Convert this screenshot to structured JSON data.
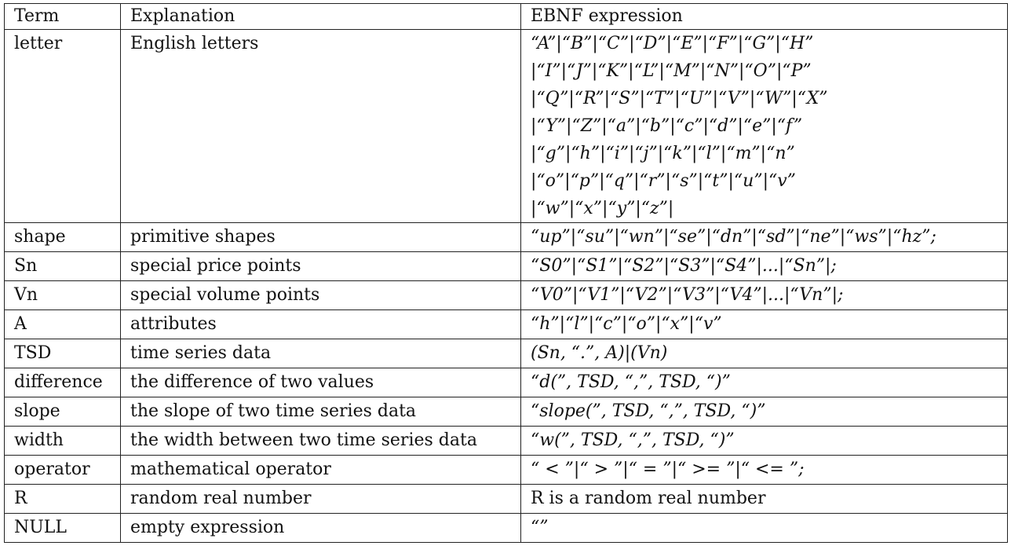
{
  "table": {
    "headers": [
      "Term",
      "Explanation",
      "EBNF expression"
    ],
    "rows": [
      {
        "term": "letter",
        "explanation": "English letters",
        "expression_lines": [
          "“A”|“B”|“C”|“D”|“E”|“F”|“G”|“H”",
          "|“I”|“J”|“K”|“L”|“M”|“N”|“O”|“P”",
          "|“Q”|“R”|“S”|“T”|“U”|“V”|“W”|“X”",
          "|“Y”|“Z”|“a”|“b”|“c”|“d”|“e”|“f”",
          "|“g”|“h”|“i”|“j”|“k”|“l”|“m”|“n”",
          "|“o”|“p”|“q”|“r”|“s”|“t”|“u”|“v”",
          "|“w”|“x”|“y”|“z”|"
        ]
      },
      {
        "term": "shape",
        "explanation": "primitive shapes",
        "expression": "“up”|“su”|“wn”|“se”|“dn”|“sd”|“ne”|“ws”|“hz”;"
      },
      {
        "term": "Sn",
        "explanation": "special price points",
        "expression": "“S0”|“S1”|“S2”|“S3”|“S4”|...|“Sn”|;"
      },
      {
        "term": "Vn",
        "explanation": "special volume points",
        "expression": "“V0”|“V1”|“V2”|“V3”|“V4”|...|“Vn”|;"
      },
      {
        "term": "A",
        "explanation": "attributes",
        "expression": "“h”|“l”|“c”|“o”|“x”|“v”"
      },
      {
        "term": "TSD",
        "explanation": "time series data",
        "expression": "(Sn, “.”, A)|(Vn)"
      },
      {
        "term": "difference",
        "explanation": "the difference of two values",
        "expression": "“d(”, TSD, “,”, TSD, “)”"
      },
      {
        "term": "slope",
        "explanation": "the slope of two time series data",
        "expression": "“slope(”, TSD, “,”, TSD, “)”"
      },
      {
        "term": "width",
        "explanation": "the width between two time series data",
        "expression": "“w(”, TSD, “,”, TSD, “)”"
      },
      {
        "term": "operator",
        "explanation": "mathematical operator",
        "expression": "“ < ”|“ > ”|“ = ”|“ >= ”|“ <= ”;"
      },
      {
        "term": "R",
        "explanation": "random real number",
        "expression": "R is a random real number",
        "expression_plain": true
      },
      {
        "term": "NULL",
        "explanation": "empty expression",
        "expression": "“”"
      }
    ]
  }
}
